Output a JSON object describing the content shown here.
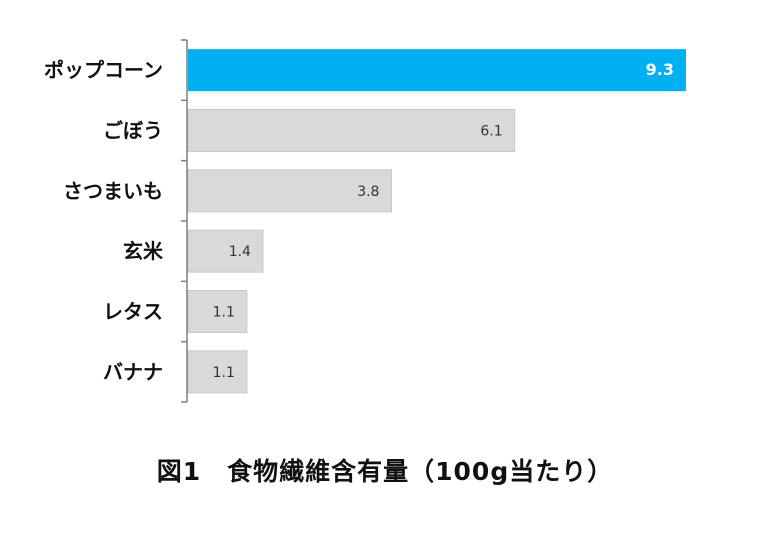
{
  "chart_data": {
    "type": "bar",
    "orientation": "horizontal",
    "categories": [
      "ポップコーン",
      "ごぼう",
      "さつまいも",
      "玄米",
      "レタス",
      "バナナ"
    ],
    "values": [
      9.3,
      6.1,
      3.8,
      1.4,
      1.1,
      1.1
    ],
    "data_labels": [
      "9.3",
      "6.1",
      "3.8",
      "1.4",
      "1.1",
      "1.1"
    ],
    "title": "図1　食物繊維含有量（100g当たり）",
    "xlabel": "",
    "ylabel": "",
    "xlim": [
      0,
      9.3
    ],
    "grid": false,
    "legend": "none",
    "highlight_index": 0,
    "colors": {
      "highlight": "#00B0F0",
      "default": "#D9D9D9",
      "default_stroke": "#C8C8C8",
      "axis": "#7F7F7F"
    }
  }
}
